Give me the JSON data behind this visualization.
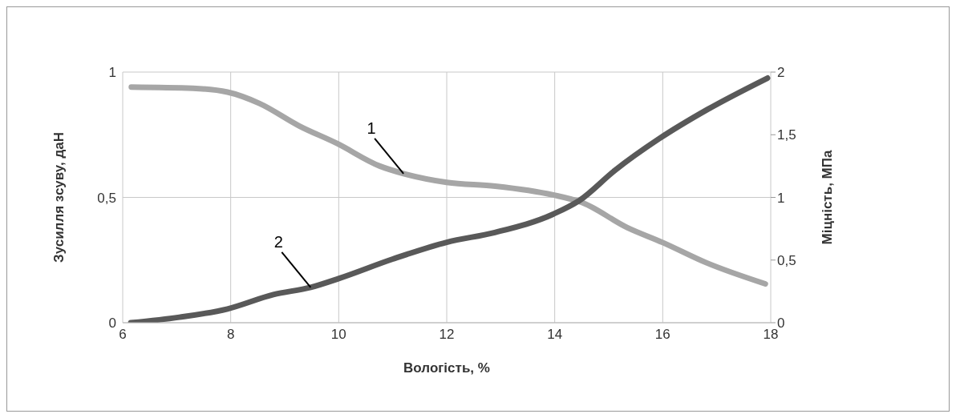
{
  "chart_data": {
    "type": "line",
    "xlabel": "Вологість, %",
    "ylabel": "Зусилля зсуву,  даН",
    "y2label": "Міцність,  МПа",
    "xlim": [
      6,
      18
    ],
    "xticks": [
      6,
      8,
      10,
      12,
      14,
      16,
      18
    ],
    "ylim": [
      0,
      1
    ],
    "yticks": [
      0,
      {
        "value": 0.5,
        "label": "0,5"
      },
      1
    ],
    "y2lim": [
      0,
      2
    ],
    "y2ticks": [
      0,
      {
        "value": 0.5,
        "label": "0,5"
      },
      1,
      {
        "value": 1.5,
        "label": "1,5"
      },
      2
    ],
    "grid": true,
    "marker": "none",
    "line_style": "solid",
    "series": [
      {
        "name": "1",
        "color": "#a6a6a6",
        "axis": "y2",
        "x": [
          6.16,
          7.3,
          7.94,
          8.53,
          9.27,
          9.97,
          10.76,
          11.2,
          12.0,
          12.9,
          13.97,
          14.5,
          15.34,
          16.0,
          16.8,
          17.9
        ],
        "values": [
          1.88,
          1.87,
          1.84,
          1.75,
          1.57,
          1.43,
          1.25,
          1.19,
          1.12,
          1.09,
          1.02,
          0.96,
          0.76,
          0.64,
          0.48,
          0.31
        ]
      },
      {
        "name": "2",
        "color": "#595959",
        "x": [
          6.15,
          7.05,
          7.94,
          8.79,
          9.48,
          10.01,
          11.0,
          12.0,
          12.89,
          13.97,
          14.46,
          15.11,
          15.94,
          16.83,
          17.94
        ],
        "values": [
          0,
          0.022,
          0.055,
          0.112,
          0.141,
          0.177,
          0.254,
          0.321,
          0.36,
          0.433,
          0.488,
          0.607,
          0.735,
          0.851,
          0.976
        ]
      }
    ]
  }
}
